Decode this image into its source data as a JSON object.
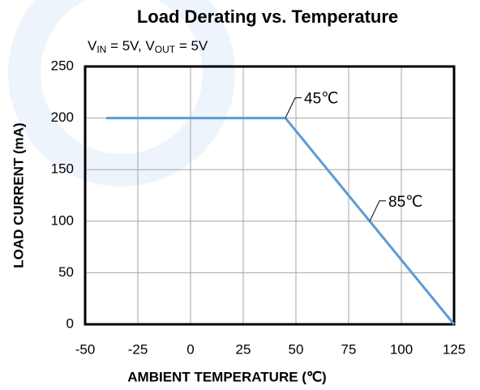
{
  "chart_data": {
    "type": "line",
    "title": "Load Derating vs. Temperature",
    "subtitle": [
      {
        "text": "V"
      },
      {
        "text": "IN",
        "sub": true
      },
      {
        "text": " = 5V, V"
      },
      {
        "text": "OUT",
        "sub": true
      },
      {
        "text": " = 5V"
      }
    ],
    "x_label": "AMBIENT TEMPERATURE (℃)",
    "y_label": "LOAD CURRENT (mA)",
    "x": [
      -40,
      45,
      125
    ],
    "series": [
      {
        "name": "Load Current",
        "color": "#5b9bd5",
        "values": [
          200,
          200,
          0
        ]
      }
    ],
    "xlim": [
      -50,
      125
    ],
    "xticks": [
      -50,
      -25,
      0,
      25,
      50,
      75,
      100,
      125
    ],
    "ylim": [
      0,
      250
    ],
    "yticks": [
      0,
      50,
      100,
      150,
      200,
      250
    ],
    "grid": true,
    "annotations": [
      {
        "text": "45℃",
        "x": 45,
        "y": 200
      },
      {
        "text": "85℃",
        "x": 85,
        "y": 100
      }
    ]
  }
}
